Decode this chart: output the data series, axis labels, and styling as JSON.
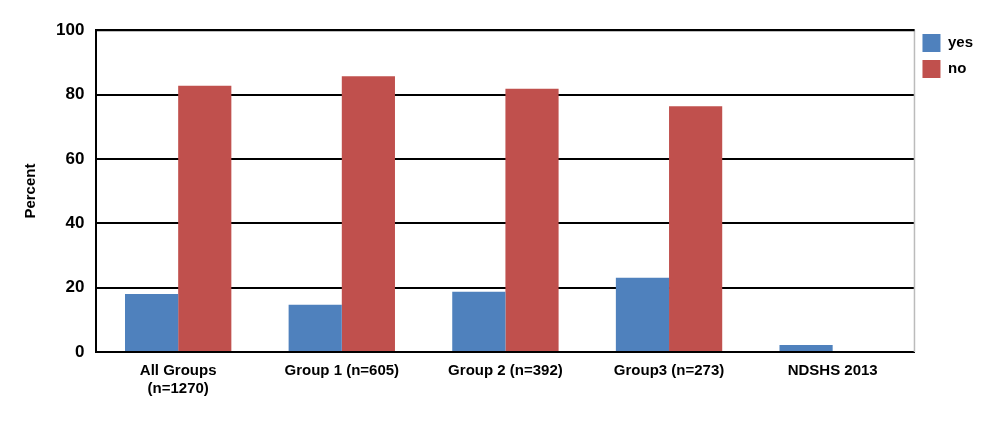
{
  "chart_data": {
    "type": "bar",
    "ylabel": "Percent",
    "categories": [
      "All Groups\n(n=1270)",
      "Group 1 (n=605)",
      "Group 2 (n=392)",
      "Group3 (n=273)",
      "NDSHS 2013"
    ],
    "series": [
      {
        "name": "yes",
        "color": "#4f81bd",
        "values": [
          18.0,
          14.7,
          18.7,
          23.1,
          2.2
        ]
      },
      {
        "name": "no",
        "color": "#c0504d",
        "values": [
          82.7,
          85.7,
          81.8,
          76.4,
          null
        ]
      }
    ],
    "ylim": [
      0,
      100
    ],
    "yticks": [
      0,
      20,
      40,
      60,
      80,
      100
    ],
    "grid": "y",
    "legend": "top right"
  }
}
